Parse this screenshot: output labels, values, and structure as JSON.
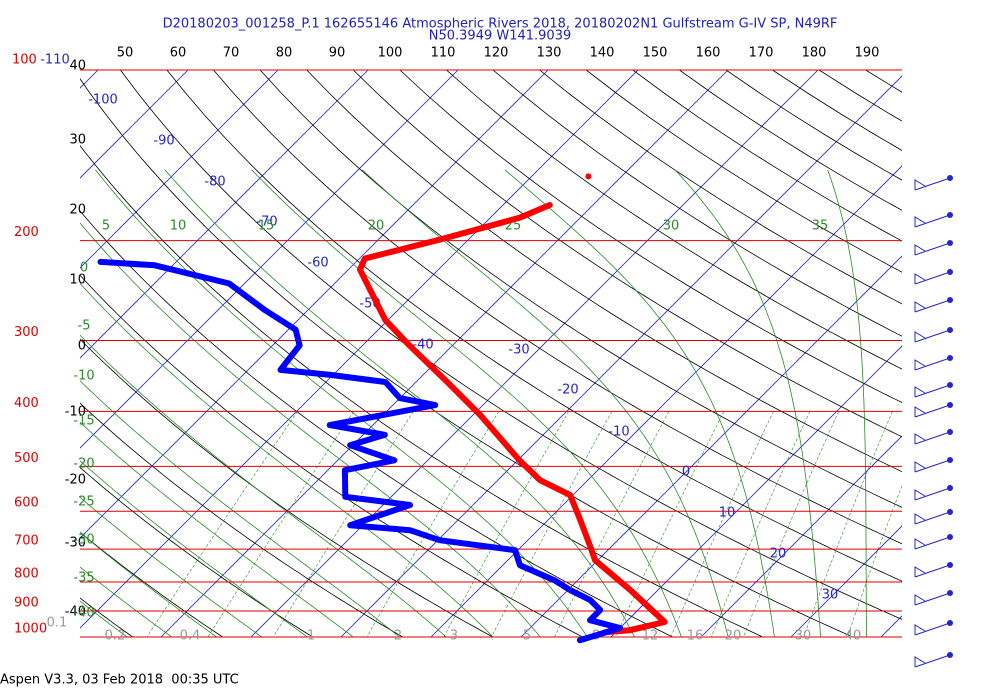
{
  "header": {
    "title": "D20180203_001258_P.1 162655146 Atmospheric Rivers 2018, 20180202N1 Gulfstream G-IV SP, N49RF",
    "location": "N50.3949 W141.9039"
  },
  "chart_data": {
    "type": "skewt",
    "ylim": [
      100,
      1000
    ],
    "log_y": true,
    "yticks": [
      100,
      200,
      300,
      400,
      500,
      600,
      700,
      800,
      900,
      1000
    ],
    "top_labels": [
      50,
      60,
      70,
      80,
      90,
      100,
      110,
      120,
      130,
      140,
      150,
      160,
      170,
      180,
      190
    ],
    "left_labels": [
      40,
      30,
      20,
      10,
      0,
      -10,
      -20,
      -30,
      -40
    ],
    "isotherm_labels": [
      -110,
      -100,
      -90,
      -80,
      -70,
      -60,
      -50,
      -40,
      -30,
      -20,
      -10,
      0,
      10,
      20,
      30
    ],
    "moist_adiabat_labels": [
      5,
      10,
      15,
      20,
      25,
      30,
      35
    ],
    "left_green_labels": [
      0,
      -5,
      -10,
      -15,
      -20,
      -25,
      -30,
      -35,
      -40
    ],
    "mixing_ratio_labels": [
      0.1,
      0.2,
      0.4,
      1,
      2,
      3,
      5,
      8,
      12,
      16,
      20,
      30,
      40
    ],
    "series": [
      {
        "color": "#ff0000",
        "pressure": [
          154,
          null,
          173,
          182,
          199,
          215,
          225,
          276,
          306,
          352,
          406,
          488,
          529,
          562,
          622,
          688,
          732,
          826,
          941,
          973,
          981
        ],
        "values": [
          -43.7,
          null,
          -44.8,
          -46.7,
          -53.1,
          -59.4,
          -58.7,
          -50.3,
          -44.8,
          -37,
          -29.2,
          -19.8,
          -15.3,
          -10.3,
          -6.4,
          -2.6,
          -0.3,
          6.9,
          14.3,
          11.3,
          8.8
        ]
      },
      {
        "color": "#0000ff",
        "pressure": [
          218,
          221,
          238,
          265,
          287,
          306,
          338,
          345,
          355,
          379,
          390,
          423,
          440,
          459,
          488,
          508,
          566,
          585,
          635,
          648,
          675,
          703,
          747,
          794,
          826,
          861,
          896,
          934,
          964,
          1013
        ],
        "values": [
          -88.4,
          -82,
          -71.7,
          -64.8,
          -59.2,
          -57,
          -56.4,
          -50.3,
          -43.4,
          -40,
          -35.3,
          -44.8,
          -37.6,
          -40.3,
          -33.7,
          -38.1,
          -35.1,
          -27,
          -31.4,
          -24.2,
          -19.8,
          -10.3,
          -8.1,
          -2.6,
          0.2,
          3.6,
          5.8,
          5.8,
          10,
          6.9
        ]
      }
    ]
  },
  "footer": "Aspen V3.3, 03 Feb 2018  00:35 UTC"
}
